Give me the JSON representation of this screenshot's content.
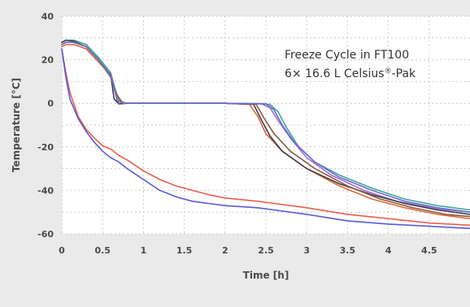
{
  "chart_data": {
    "type": "line",
    "annotation": {
      "line1": "Freeze Cycle in FT100",
      "line2_prefix": "6× 16.6 L Celsius",
      "line2_sup": "®",
      "line2_suffix": "-Pak"
    },
    "xlabel": "Time [h]",
    "ylabel": "Temperature [°C]",
    "xlim": [
      0,
      5
    ],
    "ylim": [
      -60,
      40
    ],
    "xticks": [
      0,
      0.5,
      1,
      1.5,
      2,
      2.5,
      3,
      3.5,
      4,
      4.5
    ],
    "xtick_labels": [
      "0",
      "0.5",
      "1",
      "1.5",
      "2",
      "2.5",
      "3",
      "3.5",
      "4",
      "4.5"
    ],
    "yticks": [
      40,
      20,
      0,
      -20,
      -40,
      -60
    ],
    "ytick_labels": [
      "40",
      "20",
      "0",
      "-20",
      "-40",
      "-60"
    ],
    "grid": true,
    "plot_background": "#ffffff",
    "series": [
      {
        "color": "#e8604c",
        "points": [
          [
            0,
            25
          ],
          [
            0.05,
            14
          ],
          [
            0.1,
            5
          ],
          [
            0.2,
            -6
          ],
          [
            0.3,
            -12
          ],
          [
            0.4,
            -16
          ],
          [
            0.5,
            -19.5
          ],
          [
            0.6,
            -21
          ],
          [
            0.7,
            -24
          ],
          [
            0.8,
            -26
          ],
          [
            1.0,
            -31
          ],
          [
            1.2,
            -35
          ],
          [
            1.4,
            -38
          ],
          [
            1.6,
            -40
          ],
          [
            1.8,
            -42
          ],
          [
            2.0,
            -43.5
          ],
          [
            2.4,
            -45
          ],
          [
            2.6,
            -46
          ],
          [
            3.0,
            -48
          ],
          [
            3.5,
            -51
          ],
          [
            4.0,
            -53
          ],
          [
            4.5,
            -55
          ],
          [
            5.0,
            -56
          ]
        ]
      },
      {
        "color": "#5a5ad6",
        "points": [
          [
            0,
            25
          ],
          [
            0.05,
            12
          ],
          [
            0.1,
            2
          ],
          [
            0.2,
            -7
          ],
          [
            0.3,
            -13
          ],
          [
            0.4,
            -18
          ],
          [
            0.5,
            -22
          ],
          [
            0.6,
            -25
          ],
          [
            0.7,
            -27
          ],
          [
            0.8,
            -30
          ],
          [
            1.0,
            -35
          ],
          [
            1.2,
            -40
          ],
          [
            1.4,
            -43
          ],
          [
            1.6,
            -45
          ],
          [
            1.8,
            -46
          ],
          [
            2.0,
            -47
          ],
          [
            2.4,
            -48
          ],
          [
            2.6,
            -49
          ],
          [
            3.0,
            -51
          ],
          [
            3.5,
            -54
          ],
          [
            4.0,
            -55.5
          ],
          [
            4.5,
            -56.5
          ],
          [
            5.0,
            -57.5
          ]
        ]
      },
      {
        "color": "#3ea98f",
        "points": [
          [
            0,
            28
          ],
          [
            0.05,
            29
          ],
          [
            0.15,
            29
          ],
          [
            0.3,
            27
          ],
          [
            0.45,
            21
          ],
          [
            0.6,
            14
          ],
          [
            0.65,
            7
          ],
          [
            0.7,
            1
          ],
          [
            0.8,
            0
          ],
          [
            1.0,
            0
          ],
          [
            1.5,
            0
          ],
          [
            2.0,
            0
          ],
          [
            2.4,
            -0.2
          ],
          [
            2.55,
            -0.5
          ],
          [
            2.65,
            -4
          ],
          [
            2.75,
            -11
          ],
          [
            2.9,
            -20
          ],
          [
            3.1,
            -27
          ],
          [
            3.4,
            -33
          ],
          [
            3.8,
            -39
          ],
          [
            4.2,
            -44
          ],
          [
            4.6,
            -47
          ],
          [
            5.0,
            -49
          ]
        ]
      },
      {
        "color": "#a66fd0",
        "points": [
          [
            0,
            27
          ],
          [
            0.05,
            28
          ],
          [
            0.15,
            28
          ],
          [
            0.3,
            26
          ],
          [
            0.45,
            20
          ],
          [
            0.6,
            13
          ],
          [
            0.65,
            6
          ],
          [
            0.72,
            0.5
          ],
          [
            0.8,
            0
          ],
          [
            1.5,
            0
          ],
          [
            2.0,
            0
          ],
          [
            2.45,
            -0.3
          ],
          [
            2.55,
            -2
          ],
          [
            2.65,
            -8
          ],
          [
            2.8,
            -16
          ],
          [
            3.0,
            -25
          ],
          [
            3.3,
            -33
          ],
          [
            3.7,
            -40
          ],
          [
            4.1,
            -45
          ],
          [
            4.6,
            -48.5
          ],
          [
            5.0,
            -50
          ]
        ]
      },
      {
        "color": "#d96a3c",
        "points": [
          [
            0,
            26
          ],
          [
            0.05,
            27
          ],
          [
            0.15,
            27
          ],
          [
            0.3,
            25
          ],
          [
            0.45,
            19
          ],
          [
            0.6,
            13
          ],
          [
            0.66,
            5
          ],
          [
            0.74,
            0
          ],
          [
            1.5,
            0
          ],
          [
            2.0,
            0
          ],
          [
            2.3,
            -0.5
          ],
          [
            2.4,
            -6
          ],
          [
            2.5,
            -14
          ],
          [
            2.7,
            -22
          ],
          [
            3.0,
            -30
          ],
          [
            3.4,
            -38
          ],
          [
            3.8,
            -44
          ],
          [
            4.2,
            -48
          ],
          [
            4.6,
            -51
          ],
          [
            5.0,
            -53
          ]
        ]
      },
      {
        "color": "#3f3f4a",
        "points": [
          [
            0,
            28
          ],
          [
            0.05,
            29
          ],
          [
            0.15,
            28.5
          ],
          [
            0.3,
            26
          ],
          [
            0.45,
            20
          ],
          [
            0.6,
            13
          ],
          [
            0.64,
            2
          ],
          [
            0.7,
            -0.3
          ],
          [
            0.8,
            0
          ],
          [
            1.5,
            0
          ],
          [
            2.0,
            0
          ],
          [
            2.35,
            -0.5
          ],
          [
            2.45,
            -8
          ],
          [
            2.55,
            -15
          ],
          [
            2.7,
            -22
          ],
          [
            3.0,
            -30
          ],
          [
            3.4,
            -37
          ],
          [
            3.8,
            -42
          ],
          [
            4.2,
            -46
          ],
          [
            4.6,
            -49
          ],
          [
            5.0,
            -51
          ]
        ]
      },
      {
        "color": "#8e5a3a",
        "points": [
          [
            0,
            27
          ],
          [
            0.05,
            28
          ],
          [
            0.15,
            28
          ],
          [
            0.3,
            26
          ],
          [
            0.45,
            20
          ],
          [
            0.6,
            12
          ],
          [
            0.67,
            4
          ],
          [
            0.75,
            0
          ],
          [
            1.5,
            0
          ],
          [
            2.0,
            0
          ],
          [
            2.38,
            -0.5
          ],
          [
            2.48,
            -7
          ],
          [
            2.6,
            -14
          ],
          [
            2.8,
            -22
          ],
          [
            3.1,
            -30
          ],
          [
            3.5,
            -38
          ],
          [
            3.9,
            -44
          ],
          [
            4.3,
            -48
          ],
          [
            4.7,
            -51
          ],
          [
            5.0,
            -52
          ]
        ]
      },
      {
        "color": "#6b6bd8",
        "points": [
          [
            0,
            27
          ],
          [
            0.05,
            28
          ],
          [
            0.15,
            28
          ],
          [
            0.3,
            26
          ],
          [
            0.45,
            20
          ],
          [
            0.6,
            13
          ],
          [
            0.68,
            1
          ],
          [
            0.76,
            0
          ],
          [
            1.5,
            0
          ],
          [
            2.0,
            0
          ],
          [
            2.5,
            -0.2
          ],
          [
            2.6,
            -3
          ],
          [
            2.7,
            -10
          ],
          [
            2.85,
            -18
          ],
          [
            3.1,
            -27
          ],
          [
            3.4,
            -34
          ],
          [
            3.8,
            -40
          ],
          [
            4.2,
            -45
          ],
          [
            4.6,
            -48
          ],
          [
            5.0,
            -50
          ]
        ]
      }
    ]
  }
}
